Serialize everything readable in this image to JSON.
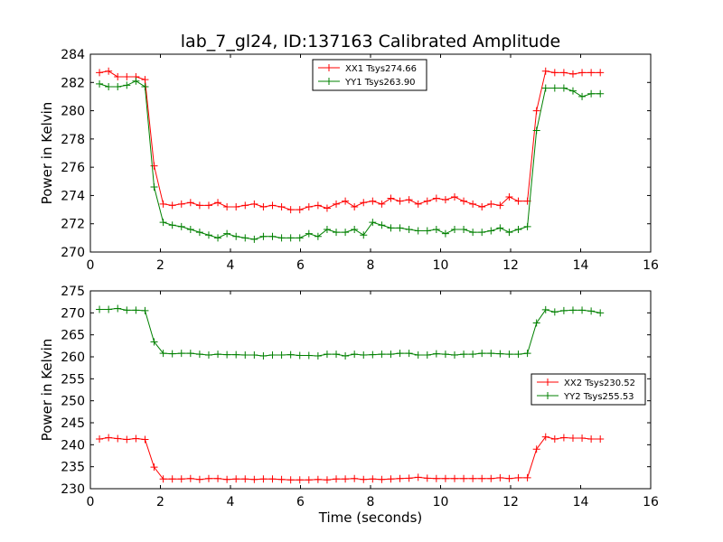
{
  "chart_data": [
    {
      "type": "line",
      "title": "lab_7_gl24, ID:137163 Calibrated Amplitude",
      "xlabel": "",
      "ylabel": "Power in Kelvin",
      "xlim": [
        0,
        16
      ],
      "ylim": [
        270,
        284
      ],
      "xticks": [
        0,
        2,
        4,
        6,
        8,
        10,
        12,
        14,
        16
      ],
      "yticks": [
        270,
        272,
        274,
        276,
        278,
        280,
        282,
        284
      ],
      "grid": false,
      "legend_position": "top-center",
      "x": [
        0.26,
        0.52,
        0.78,
        1.04,
        1.3,
        1.56,
        1.82,
        2.08,
        2.34,
        2.6,
        2.86,
        3.12,
        3.38,
        3.64,
        3.9,
        4.16,
        4.42,
        4.68,
        4.94,
        5.2,
        5.46,
        5.72,
        5.98,
        6.24,
        6.5,
        6.76,
        7.02,
        7.28,
        7.54,
        7.8,
        8.06,
        8.32,
        8.58,
        8.84,
        9.1,
        9.36,
        9.62,
        9.88,
        10.14,
        10.4,
        10.66,
        10.92,
        11.18,
        11.44,
        11.7,
        11.96,
        12.22,
        12.48,
        12.74,
        13.0,
        13.26,
        13.52,
        13.78,
        14.04,
        14.3,
        14.56
      ],
      "series": [
        {
          "name": "XX1 Tsys274.66",
          "color": "#ff0000",
          "values": [
            282.7,
            282.8,
            282.4,
            282.4,
            282.4,
            282.2,
            276.1,
            273.4,
            273.3,
            273.4,
            273.5,
            273.3,
            273.3,
            273.5,
            273.2,
            273.2,
            273.3,
            273.4,
            273.2,
            273.3,
            273.2,
            273.0,
            273.0,
            273.2,
            273.3,
            273.1,
            273.4,
            273.6,
            273.2,
            273.5,
            273.6,
            273.4,
            273.8,
            273.6,
            273.7,
            273.4,
            273.6,
            273.8,
            273.7,
            273.9,
            273.6,
            273.4,
            273.2,
            273.4,
            273.3,
            273.9,
            273.6,
            273.6,
            280.0,
            282.8,
            282.7,
            282.7,
            282.6,
            282.7,
            282.7,
            282.7
          ]
        },
        {
          "name": "YY1 Tsys263.90",
          "color": "#008000",
          "values": [
            281.9,
            281.7,
            281.7,
            281.8,
            282.1,
            281.7,
            274.6,
            272.1,
            271.9,
            271.8,
            271.6,
            271.4,
            271.2,
            271.0,
            271.3,
            271.1,
            271.0,
            270.9,
            271.1,
            271.1,
            271.0,
            271.0,
            271.0,
            271.3,
            271.1,
            271.6,
            271.4,
            271.4,
            271.6,
            271.2,
            272.1,
            271.9,
            271.7,
            271.7,
            271.6,
            271.5,
            271.5,
            271.6,
            271.3,
            271.6,
            271.6,
            271.4,
            271.4,
            271.5,
            271.7,
            271.4,
            271.6,
            271.8,
            278.6,
            281.6,
            281.6,
            281.6,
            281.4,
            281.0,
            281.2,
            281.2
          ]
        }
      ]
    },
    {
      "type": "line",
      "title": "",
      "xlabel": "Time (seconds)",
      "ylabel": "Power in Kelvin",
      "xlim": [
        0,
        16
      ],
      "ylim": [
        230,
        275
      ],
      "xticks": [
        0,
        2,
        4,
        6,
        8,
        10,
        12,
        14,
        16
      ],
      "yticks": [
        230,
        235,
        240,
        245,
        250,
        255,
        260,
        265,
        270,
        275
      ],
      "grid": false,
      "legend_position": "center-right",
      "x": [
        0.26,
        0.52,
        0.78,
        1.04,
        1.3,
        1.56,
        1.82,
        2.08,
        2.34,
        2.6,
        2.86,
        3.12,
        3.38,
        3.64,
        3.9,
        4.16,
        4.42,
        4.68,
        4.94,
        5.2,
        5.46,
        5.72,
        5.98,
        6.24,
        6.5,
        6.76,
        7.02,
        7.28,
        7.54,
        7.8,
        8.06,
        8.32,
        8.58,
        8.84,
        9.1,
        9.36,
        9.62,
        9.88,
        10.14,
        10.4,
        10.66,
        10.92,
        11.18,
        11.44,
        11.7,
        11.96,
        12.22,
        12.48,
        12.74,
        13.0,
        13.26,
        13.52,
        13.78,
        14.04,
        14.3,
        14.56
      ],
      "series": [
        {
          "name": "XX2 Tsys230.52",
          "color": "#ff0000",
          "values": [
            241.3,
            241.6,
            241.4,
            241.2,
            241.4,
            241.2,
            234.9,
            232.2,
            232.2,
            232.2,
            232.3,
            232.1,
            232.3,
            232.3,
            232.1,
            232.2,
            232.2,
            232.1,
            232.2,
            232.2,
            232.1,
            232.0,
            232.0,
            232.0,
            232.1,
            232.0,
            232.2,
            232.2,
            232.3,
            232.1,
            232.2,
            232.1,
            232.2,
            232.3,
            232.4,
            232.6,
            232.4,
            232.3,
            232.3,
            232.3,
            232.3,
            232.3,
            232.3,
            232.3,
            232.5,
            232.3,
            232.5,
            232.5,
            239.0,
            241.8,
            241.3,
            241.6,
            241.5,
            241.5,
            241.3,
            241.3
          ]
        },
        {
          "name": "YY2 Tsys255.53",
          "color": "#008000",
          "values": [
            270.8,
            270.8,
            271.0,
            270.6,
            270.6,
            270.5,
            263.4,
            260.8,
            260.7,
            260.8,
            260.8,
            260.6,
            260.4,
            260.6,
            260.5,
            260.5,
            260.4,
            260.4,
            260.2,
            260.4,
            260.4,
            260.5,
            260.3,
            260.3,
            260.2,
            260.6,
            260.6,
            260.2,
            260.6,
            260.4,
            260.5,
            260.6,
            260.6,
            260.8,
            260.8,
            260.4,
            260.4,
            260.7,
            260.6,
            260.4,
            260.6,
            260.6,
            260.8,
            260.8,
            260.7,
            260.6,
            260.6,
            260.8,
            267.7,
            270.7,
            270.2,
            270.5,
            270.6,
            270.6,
            270.4,
            270.0
          ]
        }
      ]
    }
  ]
}
